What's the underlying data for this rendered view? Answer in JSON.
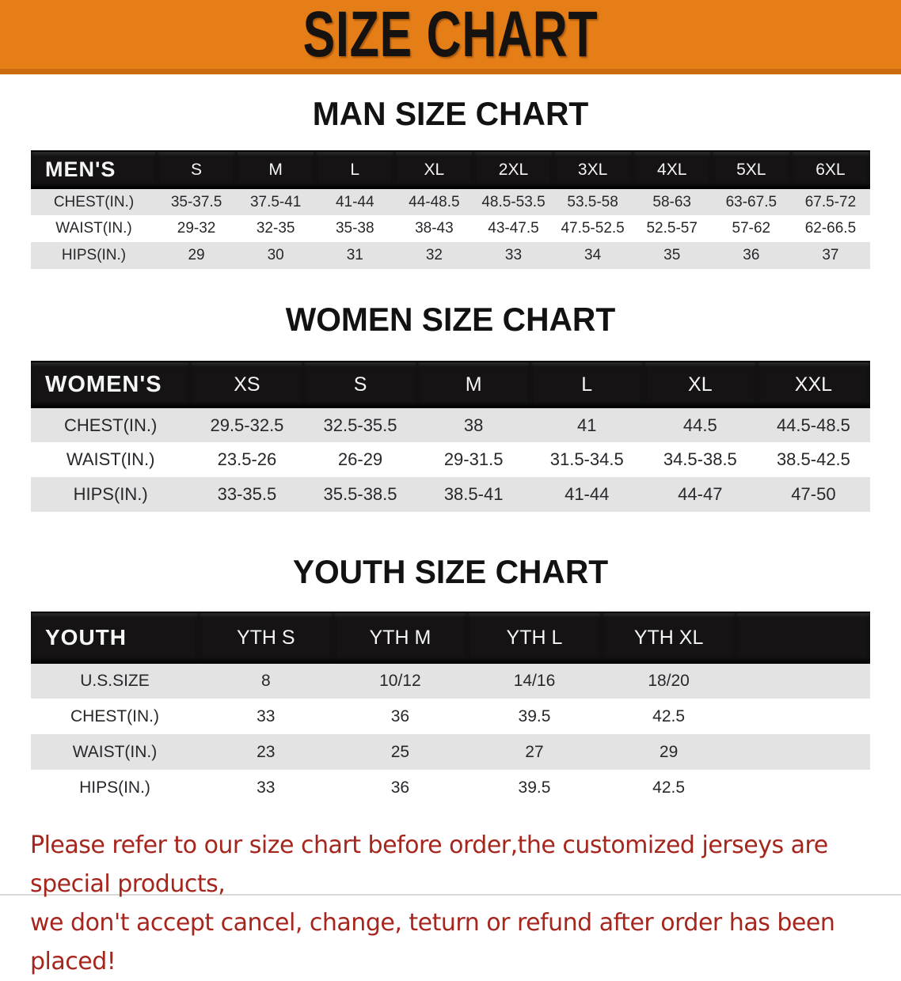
{
  "banner": {
    "title": "SIZE CHART",
    "bg_color": "#E67E17",
    "bg_edge_color": "#C96B0E"
  },
  "sections": [
    {
      "id": "men",
      "heading": "MAN SIZE CHART",
      "header_label": "MEN'S",
      "columns": [
        "S",
        "M",
        "L",
        "XL",
        "2XL",
        "3XL",
        "4XL",
        "5XL",
        "6XL"
      ],
      "rows": [
        {
          "label": "CHEST(IN.)",
          "values": [
            "35-37.5",
            "37.5-41",
            "41-44",
            "44-48.5",
            "48.5-53.5",
            "53.5-58",
            "58-63",
            "63-67.5",
            "67.5-72"
          ]
        },
        {
          "label": "WAIST(IN.)",
          "values": [
            "29-32",
            "32-35",
            "35-38",
            "38-43",
            "43-47.5",
            "47.5-52.5",
            "52.5-57",
            "57-62",
            "62-66.5"
          ]
        },
        {
          "label": "HIPS(IN.)",
          "values": [
            "29",
            "30",
            "31",
            "32",
            "33",
            "34",
            "35",
            "36",
            "37"
          ]
        }
      ]
    },
    {
      "id": "women",
      "heading": "WOMEN SIZE CHART",
      "header_label": "WOMEN'S",
      "columns": [
        "XS",
        "S",
        "M",
        "L",
        "XL",
        "XXL"
      ],
      "rows": [
        {
          "label": "CHEST(IN.)",
          "values": [
            "29.5-32.5",
            "32.5-35.5",
            "38",
            "41",
            "44.5",
            "44.5-48.5"
          ]
        },
        {
          "label": "WAIST(IN.)",
          "values": [
            "23.5-26",
            "26-29",
            "29-31.5",
            "31.5-34.5",
            "34.5-38.5",
            "38.5-42.5"
          ]
        },
        {
          "label": "HIPS(IN.)",
          "values": [
            "33-35.5",
            "35.5-38.5",
            "38.5-41",
            "41-44",
            "44-47",
            "47-50"
          ]
        }
      ]
    },
    {
      "id": "youth",
      "heading": "YOUTH SIZE CHART",
      "header_label": "YOUTH",
      "columns": [
        "YTH S",
        "YTH M",
        "YTH L",
        "YTH XL"
      ],
      "trailing_spacer": true,
      "rows": [
        {
          "label": "U.S.SIZE",
          "values": [
            "8",
            "10/12",
            "14/16",
            "18/20"
          ]
        },
        {
          "label": "CHEST(IN.)",
          "values": [
            "33",
            "36",
            "39.5",
            "42.5"
          ]
        },
        {
          "label": "WAIST(IN.)",
          "values": [
            "23",
            "25",
            "27",
            "29"
          ]
        },
        {
          "label": "HIPS(IN.)",
          "values": [
            "33",
            "36",
            "39.5",
            "42.5"
          ]
        }
      ]
    }
  ],
  "disclaimer": {
    "line1": "Please refer to our size chart before order,the customized jerseys are special products,",
    "line2": "we don't accept cancel, change, teturn or refund after order has been placed!",
    "color": "#A6251C"
  }
}
